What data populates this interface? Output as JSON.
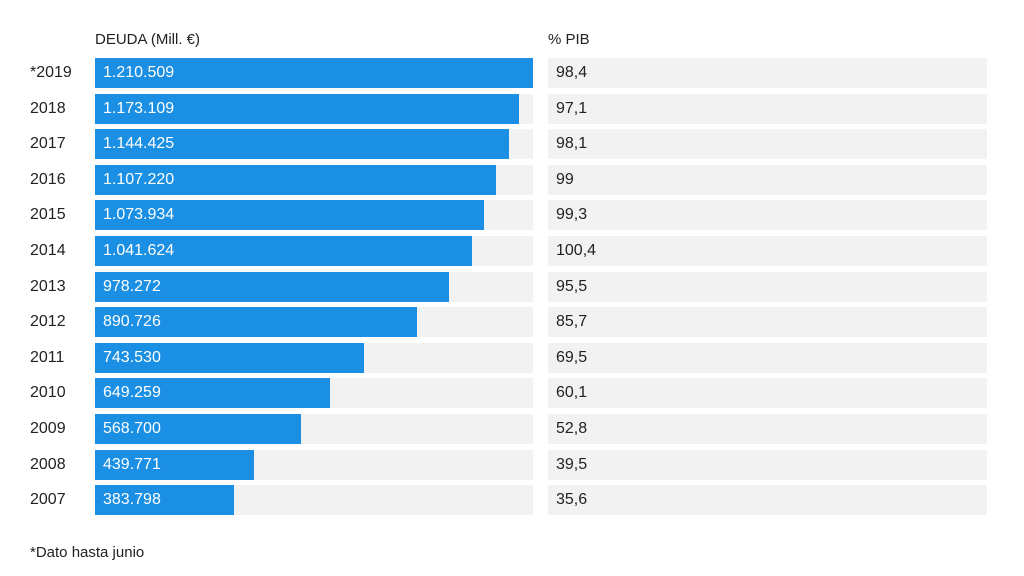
{
  "chart_data": {
    "type": "table",
    "headers": {
      "debt": "DEUDA (Mill. €)",
      "pib": "% PIB"
    },
    "years": [
      "*2019",
      "2018",
      "2017",
      "2016",
      "2015",
      "2014",
      "2013",
      "2012",
      "2011",
      "2010",
      "2009",
      "2008",
      "2007"
    ],
    "debt_labels": [
      "1.210.509",
      "1.173.109",
      "1.144.425",
      "1.107.220",
      "1.073.934",
      "1.041.624",
      "978.272",
      "890.726",
      "743.530",
      "649.259",
      "568.700",
      "439.771",
      "383.798"
    ],
    "debt_values": [
      1210509,
      1173109,
      1144425,
      1107220,
      1073934,
      1041624,
      978272,
      890726,
      743530,
      649259,
      568700,
      439771,
      383798
    ],
    "pib_labels": [
      "98,4",
      "97,1",
      "98,1",
      "99",
      "99,3",
      "100,4",
      "95,5",
      "85,7",
      "69,5",
      "60,1",
      "52,8",
      "39,5",
      "35,6"
    ],
    "bar_color": "#1a8fe3",
    "track_color": "#f2f2f2",
    "footnote": "*Dato hasta junio"
  }
}
